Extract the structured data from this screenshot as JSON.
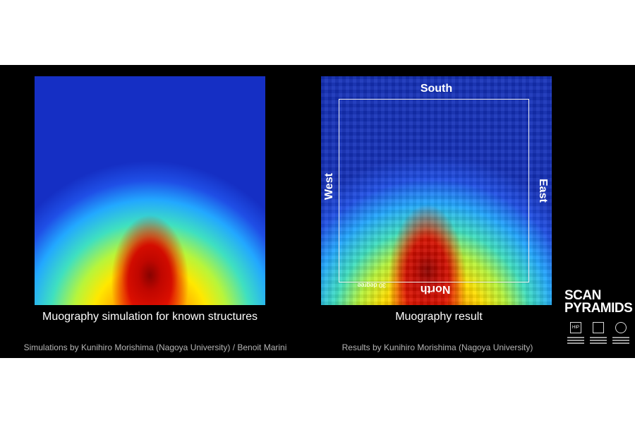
{
  "left_panel": {
    "caption": "Muography simulation for known structures",
    "credit": "Simulations by Kunihiro Morishima (Nagoya University) / Benoit Marini"
  },
  "right_panel": {
    "caption": "Muography result",
    "credit": "Results by Kunihiro Morishima (Nagoya University)",
    "labels": {
      "south": "South",
      "west": "West",
      "east": "East",
      "north": "North",
      "degree": "30 degree"
    }
  },
  "logo": {
    "line1": "SCAN",
    "line2": "PYRAMIDS",
    "partner_badges": [
      "HIP",
      "",
      ""
    ]
  },
  "colors": {
    "background_band": "#000000",
    "heatmap_low": "#152fc4",
    "heatmap_mid": "#ffe800",
    "heatmap_high": "#e01000"
  }
}
